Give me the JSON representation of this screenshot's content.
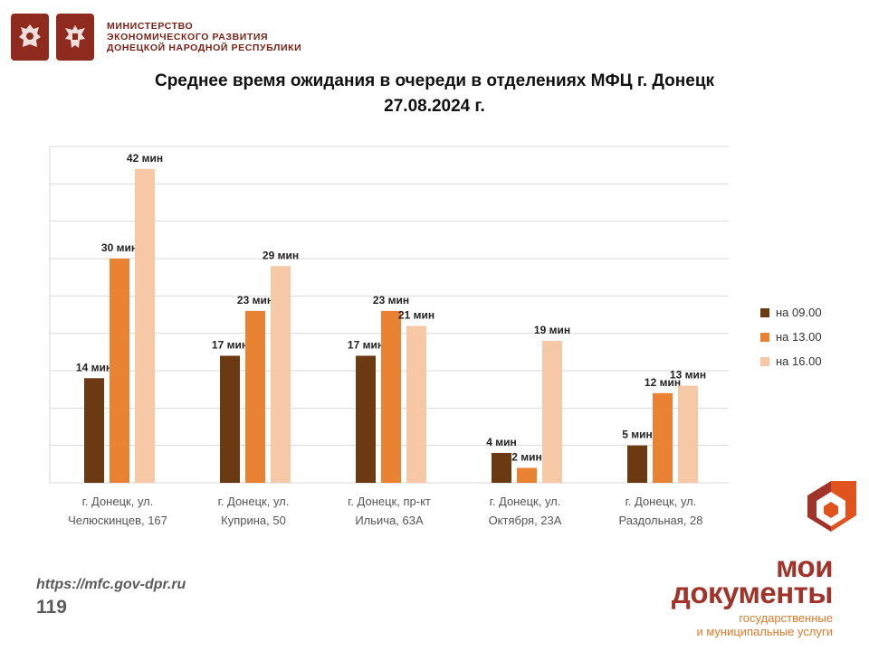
{
  "header": {
    "ministry_lines": [
      "МИНИСТЕРСТВО",
      "ЭКОНОМИЧЕСКОГО РАЗВИТИЯ",
      "ДОНЕЦКОЙ НАРОДНОЙ РЕСПУБЛИКИ"
    ]
  },
  "title_lines": [
    "Среднее время ожидания в очереди в отделениях МФЦ г. Донецк",
    "27.08.2024 г."
  ],
  "colors": {
    "brand": "#a0342a",
    "brand_accent": "#e07a2a",
    "grid": "#d9d9d9"
  },
  "chart_data": {
    "type": "bar",
    "title": "Среднее время ожидания в очереди в отделениях МФЦ г. Донецк 27.08.2024 г.",
    "categories": [
      [
        "г. Донецк, ул.",
        "Челюскинцев, 167"
      ],
      [
        "г. Донецк, ул.",
        "Куприна, 50"
      ],
      [
        "г. Донецк, пр-кт",
        "Ильича, 63А"
      ],
      [
        "г. Донецк, ул.",
        "Октября, 23А"
      ],
      [
        "г. Донецк, ул.",
        "Раздольная, 28"
      ]
    ],
    "series": [
      {
        "name": "на 09.00",
        "color": "#6b3a12",
        "values": [
          14,
          17,
          17,
          4,
          5
        ]
      },
      {
        "name": "на 13.00",
        "color": "#ea8233",
        "values": [
          30,
          23,
          23,
          2,
          12
        ]
      },
      {
        "name": "на 16.00",
        "color": "#f6c8a6",
        "values": [
          42,
          29,
          21,
          19,
          13
        ]
      }
    ],
    "value_suffix": " мин",
    "ylim": [
      0,
      45
    ],
    "grid": true,
    "legend": "right"
  },
  "footer": {
    "url": "https://mfc.gov-dpr.ru",
    "page_number": "119"
  },
  "brand": {
    "name_lines": [
      "мои",
      "документы"
    ],
    "tagline_lines": [
      "государственные",
      "и муниципальные услуги"
    ]
  }
}
